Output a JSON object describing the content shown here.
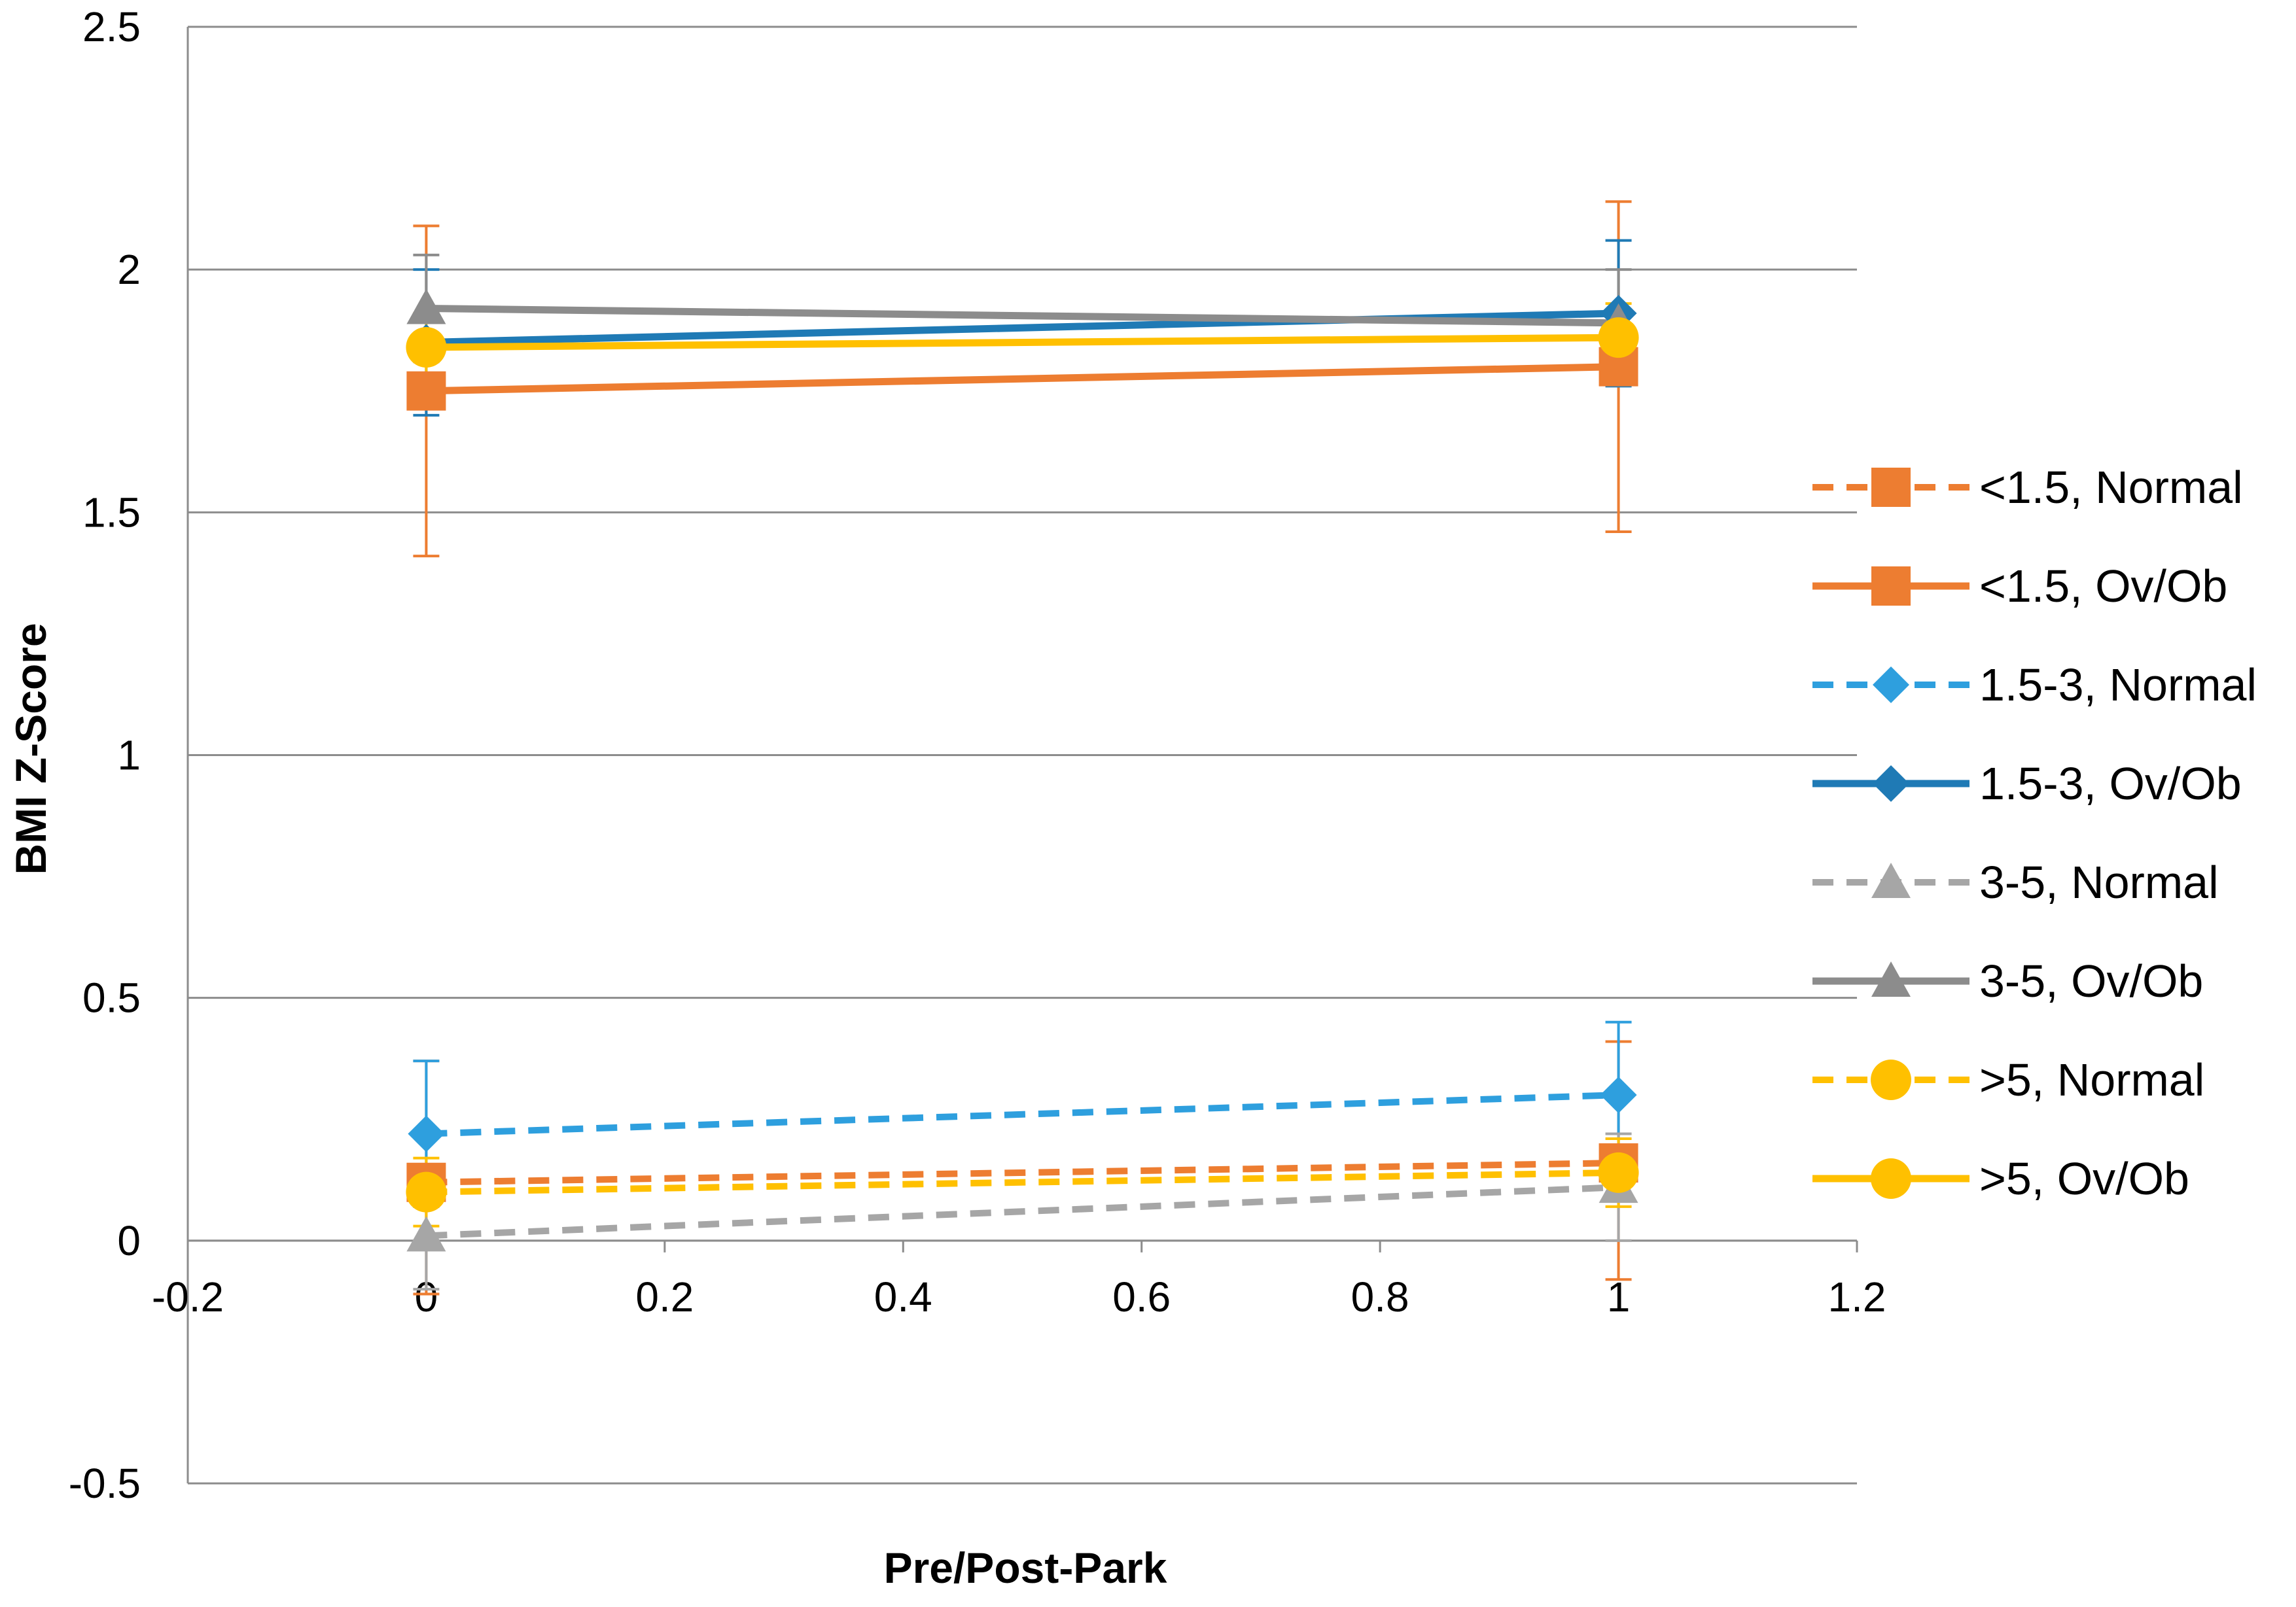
{
  "chart_data": {
    "type": "line",
    "title": "",
    "xlabel": "Pre/Post-Park",
    "ylabel": "BMI Z-Score",
    "xlim": [
      -0.2,
      1.2
    ],
    "ylim": [
      -0.5,
      2.5
    ],
    "x_ticks": [
      -0.2,
      0,
      0.2,
      0.4,
      0.6,
      0.8,
      1,
      1.2
    ],
    "x_tick_labels": [
      "-0.2",
      "0",
      "0.2",
      "0.4",
      "0.6",
      "0.8",
      "1",
      "1.2"
    ],
    "y_ticks": [
      -0.5,
      0,
      0.5,
      1,
      1.5,
      2,
      2.5
    ],
    "y_tick_labels": [
      "-0.5",
      "0",
      "0.5",
      "1",
      "1.5",
      "2",
      "2.5"
    ],
    "grid": "horizontal",
    "legend_position": "right",
    "x": [
      0,
      1
    ],
    "series": [
      {
        "name": "<1.5, Normal",
        "color": "#ED7D31",
        "dash": true,
        "marker": "square",
        "values": [
          0.12,
          0.16
        ],
        "err_low": [
          0.23,
          0.24
        ],
        "err_high": [
          0.25,
          0.25
        ]
      },
      {
        "name": "<1.5, Ov/Ob",
        "color": "#ED7D31",
        "dash": false,
        "marker": "square",
        "values": [
          1.75,
          1.8
        ],
        "err_low": [
          0.34,
          0.34
        ],
        "err_high": [
          0.34,
          0.34
        ]
      },
      {
        "name": "1.5-3, Normal",
        "color": "#2E9FDE",
        "dash": true,
        "marker": "diamond",
        "values": [
          0.22,
          0.3
        ],
        "err_low": [
          0.15,
          0.15
        ],
        "err_high": [
          0.15,
          0.15
        ]
      },
      {
        "name": "1.5-3, Ov/Ob",
        "color": "#1F7AB5",
        "dash": false,
        "marker": "diamond",
        "values": [
          1.85,
          1.91
        ],
        "err_low": [
          0.15,
          0.15
        ],
        "err_high": [
          0.15,
          0.15
        ]
      },
      {
        "name": "3-5, Normal",
        "color": "#A6A6A6",
        "dash": true,
        "marker": "triangle",
        "values": [
          0.01,
          0.11
        ],
        "err_low": [
          0.11,
          0.11
        ],
        "err_high": [
          0.11,
          0.11
        ]
      },
      {
        "name": "3-5, Ov/Ob",
        "color": "#8C8C8C",
        "dash": false,
        "marker": "triangle",
        "values": [
          1.92,
          1.89
        ],
        "err_low": [
          0.11,
          0.11
        ],
        "err_high": [
          0.11,
          0.11
        ]
      },
      {
        "name": ">5, Normal",
        "color": "#FFC000",
        "dash": true,
        "marker": "circle",
        "values": [
          0.1,
          0.14
        ],
        "err_low": [
          0.07,
          0.07
        ],
        "err_high": [
          0.07,
          0.07
        ]
      },
      {
        "name": ">5, Ov/Ob",
        "color": "#FFC000",
        "dash": false,
        "marker": "circle",
        "values": [
          1.84,
          1.86
        ],
        "err_low": [
          0.07,
          0.07
        ],
        "err_high": [
          0.07,
          0.07
        ]
      }
    ]
  }
}
